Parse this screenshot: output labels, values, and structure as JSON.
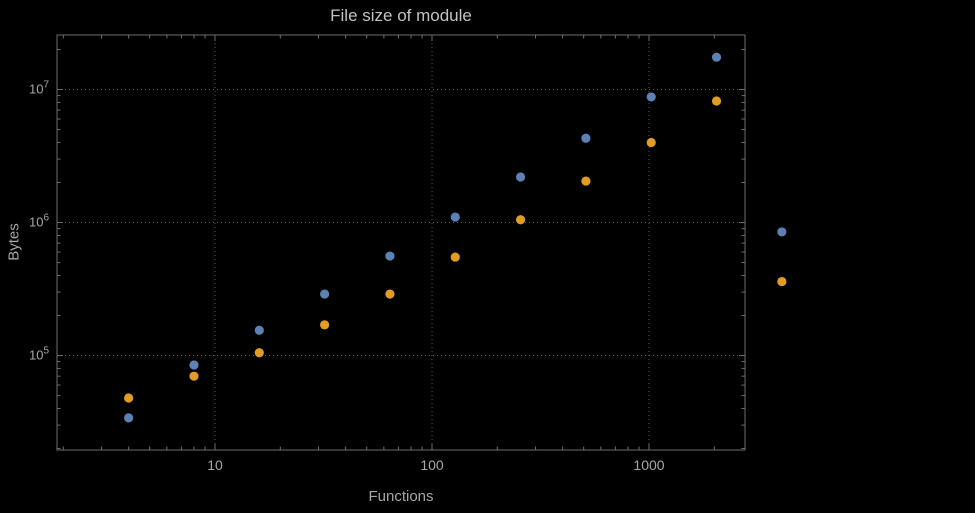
{
  "chart_data": {
    "type": "scatter",
    "title": "File size of module",
    "xlabel": "Functions",
    "ylabel": "Bytes",
    "x_scale": "log",
    "y_scale": "log",
    "grid": "dotted",
    "legend": "none",
    "xlim": [
      1.87,
      2770
    ],
    "ylim": [
      19500,
      25700000
    ],
    "x": [
      4,
      8,
      16,
      32,
      64,
      128,
      256,
      512,
      1024,
      2048,
      4096
    ],
    "series": [
      {
        "name": "blue",
        "color": "#5e81b5",
        "values": [
          34000,
          85000,
          155000,
          290000,
          560000,
          1100000,
          2200000,
          4300000,
          8800000,
          17500000,
          850000
        ]
      },
      {
        "name": "orange",
        "color": "#e19c24",
        "values": [
          48000,
          70000,
          105000,
          170000,
          290000,
          550000,
          1050000,
          2050000,
          4000000,
          8200000,
          360000
        ]
      }
    ],
    "x_ticks": [
      {
        "value": 10,
        "label": "10"
      },
      {
        "value": 100,
        "label": "100"
      },
      {
        "value": 1000,
        "label": "1000"
      }
    ],
    "y_ticks": [
      {
        "value": 100000,
        "base": "10",
        "exp": "5"
      },
      {
        "value": 1000000,
        "base": "10",
        "exp": "6"
      },
      {
        "value": 10000000,
        "base": "10",
        "exp": "7"
      }
    ]
  },
  "colors": {
    "background": "#000000",
    "frame": "#6e6e6e",
    "grid": "#5a5a5a",
    "text": "#a6a6a6",
    "title": "#c2c2c2"
  }
}
